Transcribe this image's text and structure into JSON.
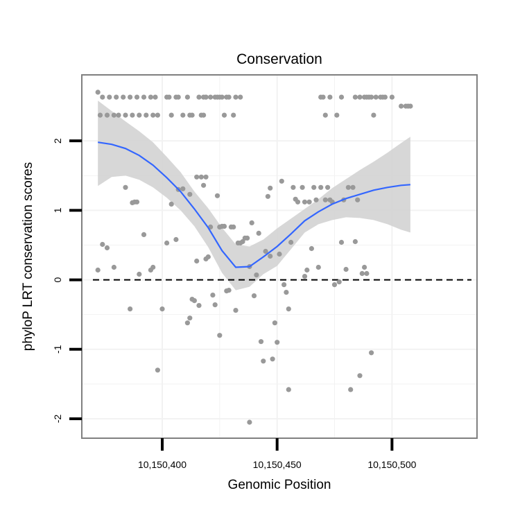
{
  "chart_data": {
    "type": "scatter",
    "title": "Conservation",
    "xlabel": "Genomic Position",
    "ylabel": "phyloP LRT conservation scores",
    "xlim": [
      10150365,
      10150537
    ],
    "ylim": [
      -2.28,
      2.95
    ],
    "x_ticks": [
      10150400,
      10150450,
      10150500
    ],
    "x_tick_labels": [
      "10,150,400",
      "10,150,450",
      "10,150,500"
    ],
    "y_ticks": [
      -2,
      -1,
      0,
      1,
      2
    ],
    "y_tick_labels": [
      "-2",
      "-1",
      "0",
      "1",
      "2"
    ],
    "reference_line": {
      "y": 0,
      "style": "dashed"
    },
    "grid": true,
    "colors": {
      "points": "#999999",
      "smooth": "#3366ff",
      "band": "#d3d3d3",
      "panel_border": "#7f7f7f",
      "grid": "#f2f2f2"
    },
    "points": [
      [
        10150372,
        2.7
      ],
      [
        10150373,
        2.37
      ],
      [
        10150374,
        2.63
      ],
      [
        10150376,
        2.37
      ],
      [
        10150377,
        2.63
      ],
      [
        10150379,
        2.37
      ],
      [
        10150380,
        2.63
      ],
      [
        10150381,
        2.37
      ],
      [
        10150383,
        2.63
      ],
      [
        10150384,
        2.37
      ],
      [
        10150386,
        2.63
      ],
      [
        10150387,
        2.37
      ],
      [
        10150389,
        2.63
      ],
      [
        10150390,
        2.37
      ],
      [
        10150392,
        2.63
      ],
      [
        10150393,
        2.37
      ],
      [
        10150395,
        2.63
      ],
      [
        10150396,
        2.37
      ],
      [
        10150397,
        2.63
      ],
      [
        10150398,
        2.37
      ],
      [
        10150402,
        2.63
      ],
      [
        10150403,
        2.63
      ],
      [
        10150404,
        2.37
      ],
      [
        10150406,
        2.63
      ],
      [
        10150407,
        2.63
      ],
      [
        10150409,
        2.37
      ],
      [
        10150411,
        2.63
      ],
      [
        10150412,
        2.37
      ],
      [
        10150413,
        2.37
      ],
      [
        10150416,
        2.63
      ],
      [
        10150417,
        2.37
      ],
      [
        10150418,
        2.37
      ],
      [
        10150419,
        2.63
      ],
      [
        10150421,
        2.63
      ],
      [
        10150423,
        2.63
      ],
      [
        10150424,
        2.63
      ],
      [
        10150425,
        2.63
      ],
      [
        10150426,
        2.63
      ],
      [
        10150427,
        2.37
      ],
      [
        10150428,
        2.63
      ],
      [
        10150429,
        2.63
      ],
      [
        10150431,
        2.37
      ],
      [
        10150432,
        2.63
      ],
      [
        10150434,
        2.63
      ],
      [
        10150418,
        2.63
      ],
      [
        10150419,
        2.63
      ],
      [
        10150469,
        2.63
      ],
      [
        10150470,
        2.63
      ],
      [
        10150471,
        2.37
      ],
      [
        10150473,
        2.63
      ],
      [
        10150476,
        2.37
      ],
      [
        10150478,
        2.63
      ],
      [
        10150484,
        2.63
      ],
      [
        10150486,
        2.63
      ],
      [
        10150488,
        2.63
      ],
      [
        10150489,
        2.63
      ],
      [
        10150490,
        2.63
      ],
      [
        10150491,
        2.63
      ],
      [
        10150492,
        2.37
      ],
      [
        10150493,
        2.63
      ],
      [
        10150495,
        2.63
      ],
      [
        10150496,
        2.63
      ],
      [
        10150497,
        2.63
      ],
      [
        10150500,
        2.63
      ],
      [
        10150504,
        2.5
      ],
      [
        10150506,
        2.5
      ],
      [
        10150507,
        2.5
      ],
      [
        10150508,
        2.5
      ],
      [
        10150372,
        0.14
      ],
      [
        10150374,
        0.51
      ],
      [
        10150376,
        0.46
      ],
      [
        10150379,
        0.18
      ],
      [
        10150384,
        1.33
      ],
      [
        10150386,
        -0.42
      ],
      [
        10150387,
        1.11
      ],
      [
        10150388,
        1.12
      ],
      [
        10150389,
        1.12
      ],
      [
        10150390,
        0.08
      ],
      [
        10150392,
        0.65
      ],
      [
        10150395,
        0.14
      ],
      [
        10150396,
        0.18
      ],
      [
        10150398,
        -1.3
      ],
      [
        10150400,
        -0.42
      ],
      [
        10150402,
        0.53
      ],
      [
        10150404,
        1.09
      ],
      [
        10150406,
        0.58
      ],
      [
        10150407,
        1.3
      ],
      [
        10150409,
        1.31
      ],
      [
        10150411,
        -0.62
      ],
      [
        10150412,
        -0.55
      ],
      [
        10150412,
        1.23
      ],
      [
        10150413,
        -0.28
      ],
      [
        10150414,
        -0.3
      ],
      [
        10150415,
        0.27
      ],
      [
        10150415,
        1.48
      ],
      [
        10150416,
        -0.37
      ],
      [
        10150417,
        1.48
      ],
      [
        10150418,
        1.36
      ],
      [
        10150419,
        1.48
      ],
      [
        10150419,
        0.3
      ],
      [
        10150420,
        0.33
      ],
      [
        10150421,
        0.76
      ],
      [
        10150422,
        -0.22
      ],
      [
        10150423,
        -0.36
      ],
      [
        10150424,
        1.21
      ],
      [
        10150425,
        -0.8
      ],
      [
        10150425,
        0.76
      ],
      [
        10150426,
        0.77
      ],
      [
        10150427,
        0.77
      ],
      [
        10150428,
        -0.16
      ],
      [
        10150429,
        -0.15
      ],
      [
        10150430,
        0.76
      ],
      [
        10150431,
        0.76
      ],
      [
        10150432,
        -0.44
      ],
      [
        10150433,
        0.53
      ],
      [
        10150434,
        0.53
      ],
      [
        10150435,
        0.55
      ],
      [
        10150436,
        0.6
      ],
      [
        10150437,
        0.6
      ],
      [
        10150438,
        0.19
      ],
      [
        10150438,
        -2.05
      ],
      [
        10150439,
        0.82
      ],
      [
        10150440,
        -0.23
      ],
      [
        10150441,
        0.07
      ],
      [
        10150442,
        0.67
      ],
      [
        10150443,
        -0.89
      ],
      [
        10150444,
        -1.17
      ],
      [
        10150445,
        0.41
      ],
      [
        10150446,
        1.2
      ],
      [
        10150447,
        0.34
      ],
      [
        10150447,
        1.32
      ],
      [
        10150448,
        -1.14
      ],
      [
        10150449,
        -0.62
      ],
      [
        10150450,
        -0.9
      ],
      [
        10150451,
        0.37
      ],
      [
        10150452,
        1.42
      ],
      [
        10150453,
        -0.07
      ],
      [
        10150454,
        -0.18
      ],
      [
        10150455,
        -1.58
      ],
      [
        10150455,
        -0.42
      ],
      [
        10150456,
        0.54
      ],
      [
        10150457,
        1.33
      ],
      [
        10150458,
        1.16
      ],
      [
        10150459,
        1.12
      ],
      [
        10150461,
        1.33
      ],
      [
        10150462,
        1.12
      ],
      [
        10150462,
        0.05
      ],
      [
        10150463,
        0.14
      ],
      [
        10150464,
        1.12
      ],
      [
        10150465,
        0.45
      ],
      [
        10150466,
        1.33
      ],
      [
        10150467,
        1.15
      ],
      [
        10150468,
        0.18
      ],
      [
        10150469,
        1.33
      ],
      [
        10150471,
        1.15
      ],
      [
        10150472,
        1.33
      ],
      [
        10150473,
        1.15
      ],
      [
        10150474,
        1.12
      ],
      [
        10150475,
        -0.07
      ],
      [
        10150477,
        -0.03
      ],
      [
        10150478,
        0.54
      ],
      [
        10150479,
        1.15
      ],
      [
        10150480,
        0.15
      ],
      [
        10150481,
        1.33
      ],
      [
        10150482,
        -1.58
      ],
      [
        10150483,
        1.33
      ],
      [
        10150484,
        0.55
      ],
      [
        10150485,
        1.15
      ],
      [
        10150486,
        -1.38
      ],
      [
        10150487,
        0.09
      ],
      [
        10150488,
        0.18
      ],
      [
        10150489,
        0.09
      ],
      [
        10150491,
        -1.05
      ]
    ],
    "smooth": {
      "x": [
        10150372,
        10150378,
        10150384,
        10150390,
        10150396,
        10150402,
        10150408,
        10150414,
        10150420,
        10150426,
        10150432,
        10150438,
        10150444,
        10150450,
        10150456,
        10150462,
        10150468,
        10150474,
        10150480,
        10150486,
        10150492,
        10150498,
        10150504,
        10150508
      ],
      "y": [
        1.98,
        1.95,
        1.89,
        1.79,
        1.65,
        1.47,
        1.27,
        1.02,
        0.75,
        0.42,
        0.18,
        0.19,
        0.33,
        0.48,
        0.66,
        0.85,
        0.98,
        1.09,
        1.17,
        1.23,
        1.29,
        1.33,
        1.36,
        1.37
      ],
      "lower": [
        1.35,
        1.48,
        1.5,
        1.44,
        1.33,
        1.18,
        1.0,
        0.77,
        0.47,
        0.1,
        -0.15,
        -0.1,
        0.08,
        0.2,
        0.44,
        0.68,
        0.8,
        0.86,
        0.9,
        0.89,
        0.86,
        0.8,
        0.72,
        0.68
      ],
      "upper": [
        2.58,
        2.43,
        2.28,
        2.14,
        1.98,
        1.77,
        1.55,
        1.27,
        1.03,
        0.75,
        0.51,
        0.48,
        0.58,
        0.74,
        0.88,
        1.02,
        1.16,
        1.32,
        1.45,
        1.58,
        1.7,
        1.83,
        1.97,
        2.06
      ]
    }
  }
}
